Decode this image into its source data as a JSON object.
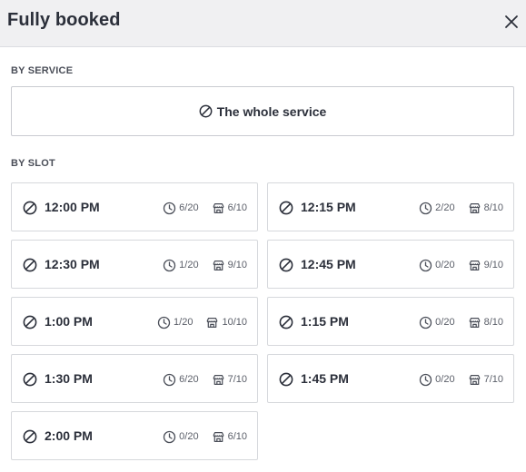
{
  "header": {
    "title": "Fully booked"
  },
  "by_service": {
    "label": "BY SERVICE",
    "button_label": "The whole service"
  },
  "by_slot": {
    "label": "BY SLOT",
    "slots": [
      {
        "time": "12:00 PM",
        "clock": "6/20",
        "store": "6/10"
      },
      {
        "time": "12:15 PM",
        "clock": "2/20",
        "store": "8/10"
      },
      {
        "time": "12:30 PM",
        "clock": "1/20",
        "store": "9/10"
      },
      {
        "time": "12:45 PM",
        "clock": "0/20",
        "store": "9/10"
      },
      {
        "time": "1:00 PM",
        "clock": "1/20",
        "store": "10/10"
      },
      {
        "time": "1:15 PM",
        "clock": "0/20",
        "store": "8/10"
      },
      {
        "time": "1:30 PM",
        "clock": "6/20",
        "store": "7/10"
      },
      {
        "time": "1:45 PM",
        "clock": "0/20",
        "store": "7/10"
      },
      {
        "time": "2:00 PM",
        "clock": "0/20",
        "store": "6/10"
      }
    ]
  },
  "icons": {
    "close": "close-icon",
    "ban": "ban-icon",
    "clock": "clock-icon",
    "store": "store-icon"
  },
  "colors": {
    "text": "#2b2f3a",
    "header_bg": "#f0f0f2",
    "border": "#d6d8dc"
  }
}
